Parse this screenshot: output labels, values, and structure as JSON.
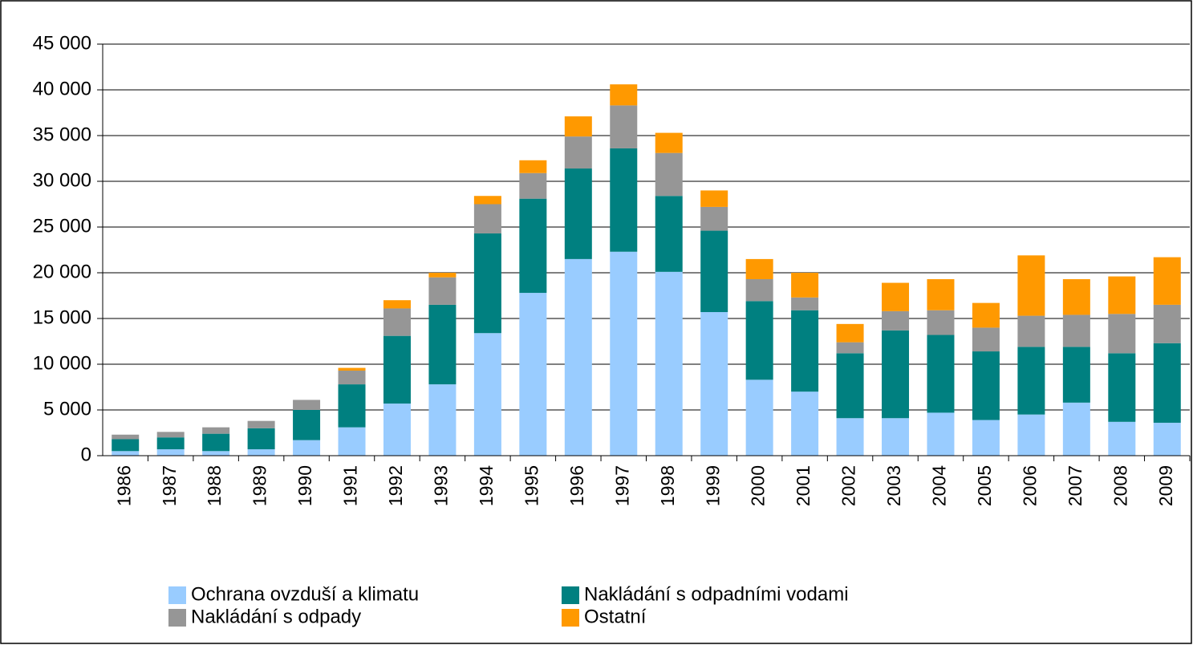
{
  "chart_data": {
    "type": "stacked_bar",
    "categories": [
      "1986",
      "1987",
      "1988",
      "1989",
      "1990",
      "1991",
      "1992",
      "1993",
      "1994",
      "1995",
      "1996",
      "1997",
      "1998",
      "1999",
      "2000",
      "2001",
      "2002",
      "2003",
      "2004",
      "2005",
      "2006",
      "2007",
      "2008",
      "2009"
    ],
    "series": [
      {
        "name": "Ochrana ovzduší a klimatu",
        "color": "#99ccff",
        "values": [
          500,
          700,
          500,
          700,
          1700,
          3100,
          5700,
          7800,
          13400,
          17800,
          21500,
          22300,
          20100,
          15700,
          8300,
          7000,
          4100,
          4100,
          4700,
          3900,
          4500,
          5800,
          3700,
          3600
        ]
      },
      {
        "name": "Nakládání s odpadními vodami",
        "color": "#008080",
        "values": [
          1300,
          1300,
          1900,
          2300,
          3300,
          4700,
          7400,
          8700,
          10900,
          10300,
          9900,
          11300,
          8300,
          8900,
          8600,
          8900,
          7100,
          9600,
          8500,
          7500,
          7400,
          6100,
          7500,
          8700
        ]
      },
      {
        "name": "Nakládání s odpady",
        "color": "#969696",
        "values": [
          500,
          600,
          700,
          800,
          1100,
          1500,
          3000,
          3000,
          3200,
          2800,
          3500,
          4700,
          4700,
          2600,
          2400,
          1400,
          1200,
          2100,
          2700,
          2600,
          3400,
          3500,
          4300,
          4200
        ]
      },
      {
        "name": "Ostatní",
        "color": "#ff9900",
        "values": [
          0,
          0,
          0,
          0,
          0,
          300,
          900,
          500,
          900,
          1400,
          2200,
          2300,
          2200,
          1800,
          2200,
          2700,
          2000,
          3100,
          3400,
          2700,
          6600,
          3900,
          4100,
          5200
        ]
      }
    ],
    "ylim": [
      0,
      45000
    ],
    "yticks": [
      0,
      {
        "value": 5000,
        "label": "5 000"
      },
      {
        "value": 10000,
        "label": "10 000"
      },
      {
        "value": 15000,
        "label": "15 000"
      },
      {
        "value": 20000,
        "label": "20 000"
      },
      {
        "value": 25000,
        "label": "25 000"
      },
      {
        "value": 30000,
        "label": "30 000"
      },
      {
        "value": 35000,
        "label": "35 000"
      },
      {
        "value": 40000,
        "label": "40 000"
      },
      {
        "value": 45000,
        "label": "45 000"
      }
    ],
    "grid": true
  }
}
